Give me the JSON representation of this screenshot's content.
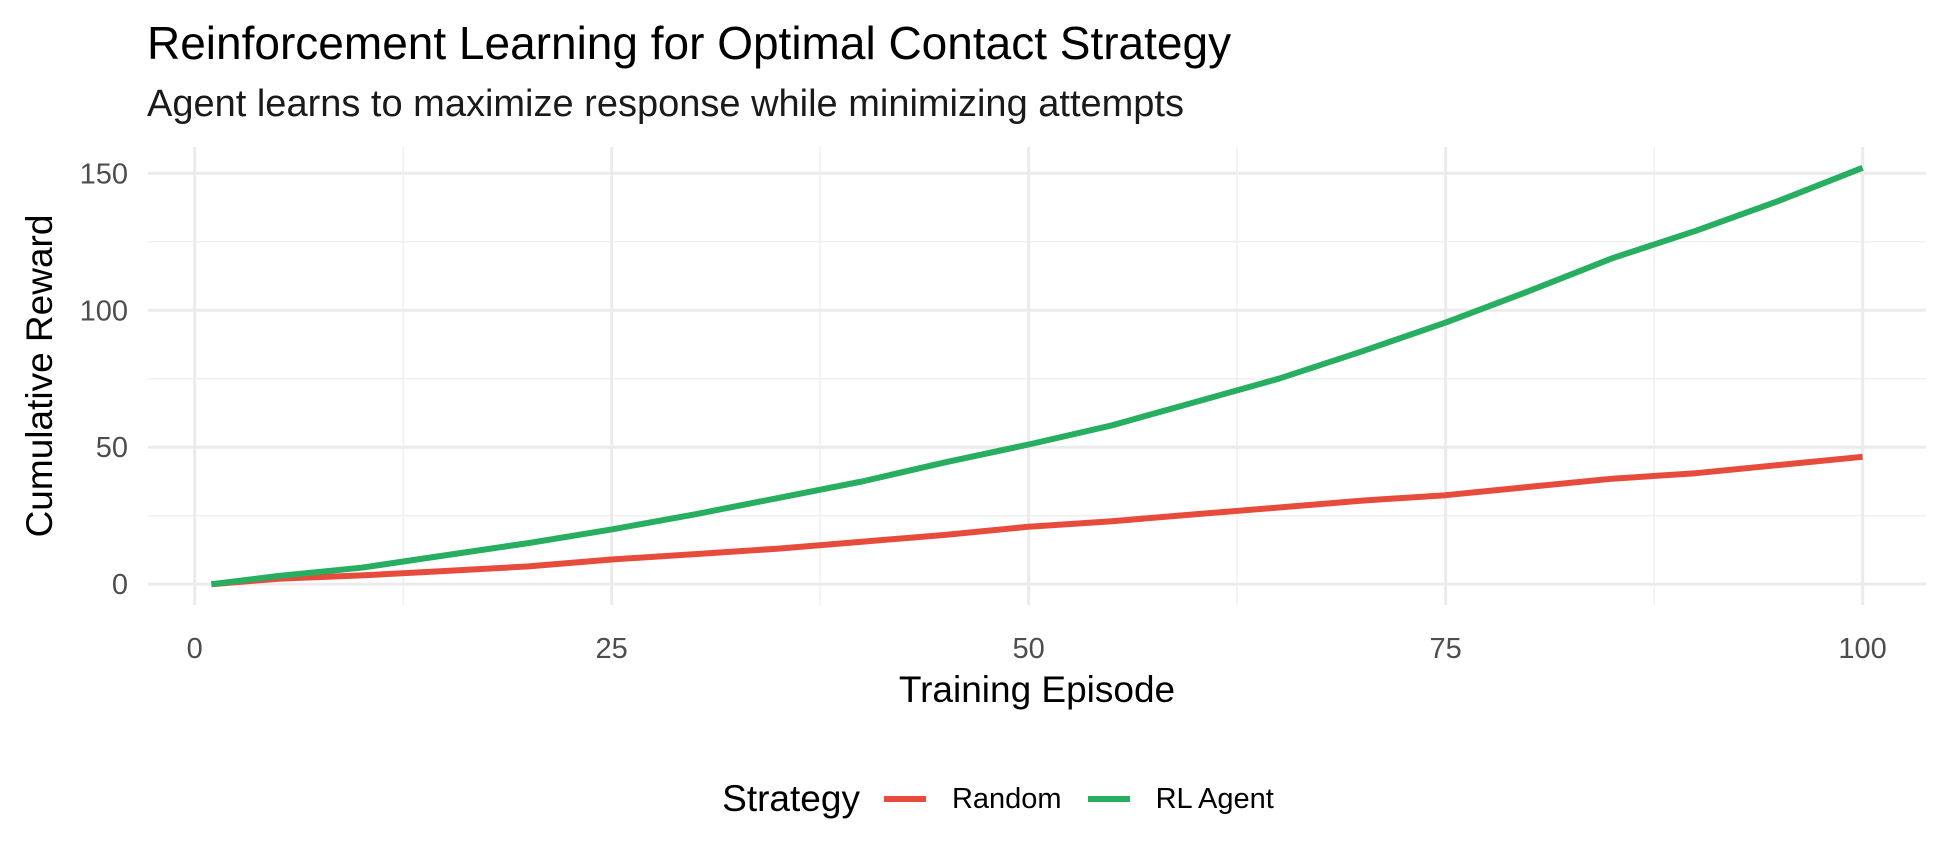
{
  "chart_data": {
    "type": "line",
    "title": "Reinforcement Learning for Optimal Contact Strategy",
    "subtitle": "Agent learns to maximize response while minimizing attempts",
    "xlabel": "Training Episode",
    "ylabel": "Cumulative Reward",
    "xlim": [
      -2.8,
      103.8
    ],
    "ylim": [
      -7.6,
      159.6
    ],
    "x_ticks": [
      0,
      25,
      50,
      75,
      100
    ],
    "y_ticks": [
      0,
      50,
      100,
      150
    ],
    "grid": true,
    "legend_position": "bottom",
    "legend_title": "Strategy",
    "x": [
      1,
      5,
      10,
      15,
      20,
      25,
      30,
      35,
      40,
      45,
      50,
      55,
      60,
      65,
      70,
      75,
      80,
      85,
      90,
      95,
      100
    ],
    "series": [
      {
        "name": "Random",
        "color": "#E64B3C",
        "values": [
          0,
          2.0,
          3.2,
          4.8,
          6.5,
          9.0,
          11.0,
          13.0,
          15.5,
          18.0,
          21.0,
          23.0,
          25.5,
          28.0,
          30.5,
          32.5,
          35.5,
          38.5,
          40.5,
          43.5,
          46.5
        ]
      },
      {
        "name": "RL Agent",
        "color": "#27AE60",
        "values": [
          0,
          3.0,
          6.0,
          10.5,
          15.0,
          20.0,
          25.5,
          31.5,
          37.5,
          44.5,
          51.0,
          58.0,
          66.5,
          75.0,
          85.0,
          95.5,
          107.0,
          119.0,
          129.0,
          140.0,
          152.0
        ]
      }
    ]
  }
}
